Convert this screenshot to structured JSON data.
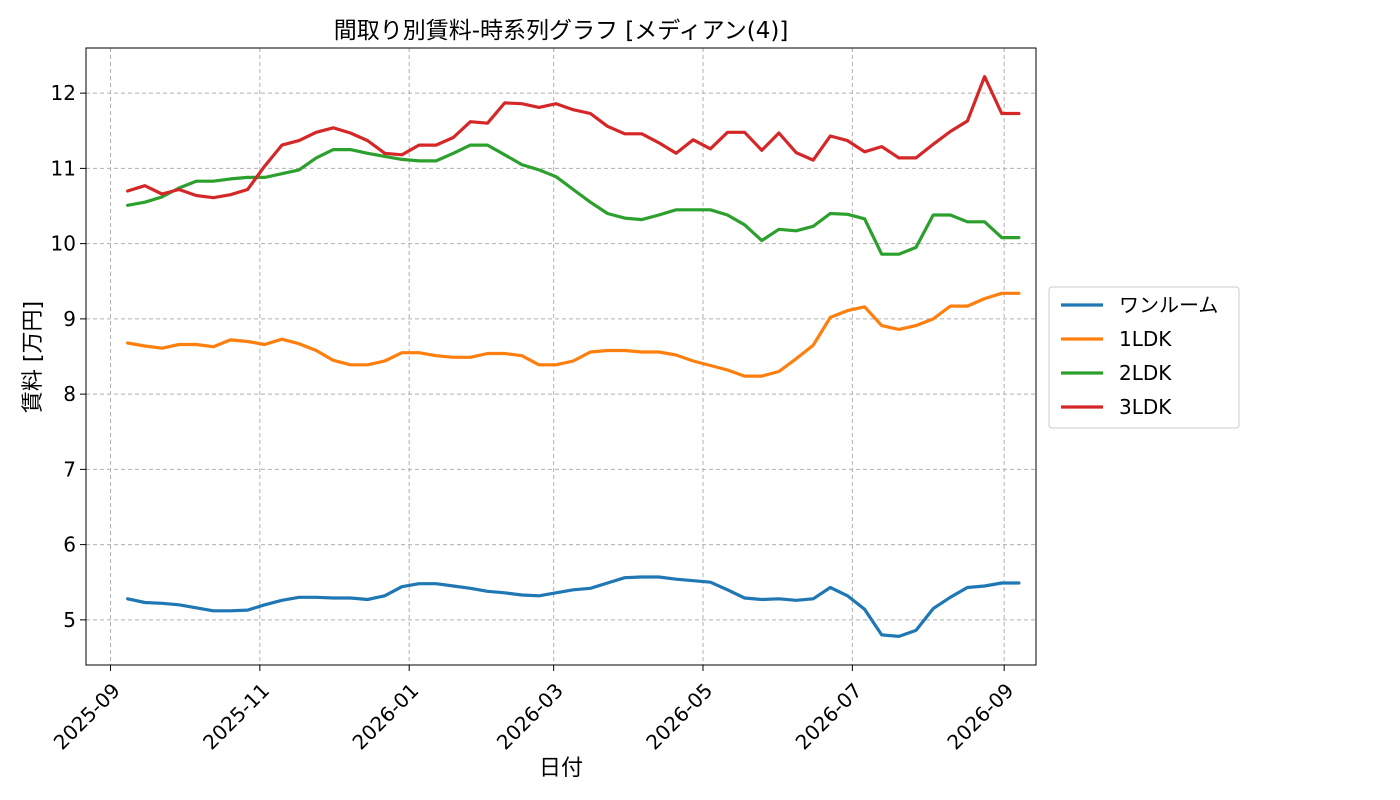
{
  "chart_data": {
    "type": "line",
    "title": "間取り別賃料-時系列グラフ [メディアン(4)]",
    "xlabel": "日付",
    "ylabel": "賃料 [万円]",
    "ylim": [
      4.4,
      12.6
    ],
    "xlim": [
      "2025-08-22",
      "2026-09-14"
    ],
    "yticks": [
      5,
      6,
      7,
      8,
      9,
      10,
      11,
      12
    ],
    "xticks": [
      "2025-09",
      "2025-11",
      "2026-01",
      "2026-03",
      "2026-05",
      "2026-07",
      "2026-09"
    ],
    "grid": true,
    "legend_position": "right-outside",
    "x": [
      "2025-09-08",
      "2025-09-15",
      "2025-09-22",
      "2025-09-29",
      "2025-10-06",
      "2025-10-13",
      "2025-10-20",
      "2025-10-27",
      "2025-11-03",
      "2025-11-10",
      "2025-11-17",
      "2025-11-24",
      "2025-12-01",
      "2025-12-08",
      "2025-12-15",
      "2025-12-22",
      "2025-12-29",
      "2026-01-05",
      "2026-01-12",
      "2026-01-19",
      "2026-01-26",
      "2026-02-02",
      "2026-02-09",
      "2026-02-16",
      "2026-02-23",
      "2026-03-02",
      "2026-03-09",
      "2026-03-16",
      "2026-03-23",
      "2026-03-30",
      "2026-04-06",
      "2026-04-13",
      "2026-04-20",
      "2026-04-27",
      "2026-05-04",
      "2026-05-11",
      "2026-05-18",
      "2026-05-25",
      "2026-06-01",
      "2026-06-08",
      "2026-06-15",
      "2026-06-22",
      "2026-06-29",
      "2026-07-06",
      "2026-07-13",
      "2026-07-20",
      "2026-07-27",
      "2026-08-03",
      "2026-08-10",
      "2026-08-17",
      "2026-08-24",
      "2026-08-31",
      "2026-09-07"
    ],
    "series": [
      {
        "name": "ワンルーム",
        "color": "#1f77b4",
        "values": [
          5.28,
          5.23,
          5.22,
          5.2,
          5.16,
          5.12,
          5.12,
          5.13,
          5.2,
          5.26,
          5.3,
          5.3,
          5.29,
          5.29,
          5.27,
          5.32,
          5.44,
          5.48,
          5.48,
          5.45,
          5.42,
          5.38,
          5.36,
          5.33,
          5.32,
          5.36,
          5.4,
          5.42,
          5.49,
          5.56,
          5.57,
          5.57,
          5.54,
          5.52,
          5.5,
          5.4,
          5.29,
          5.27,
          5.28,
          5.26,
          5.28,
          5.43,
          5.32,
          5.14,
          4.8,
          4.78,
          4.86,
          5.15,
          5.3,
          5.43,
          5.45,
          5.49,
          5.49
        ]
      },
      {
        "name": "1LDK",
        "color": "#ff7f0e",
        "values": [
          8.68,
          8.64,
          8.61,
          8.66,
          8.66,
          8.63,
          8.72,
          8.7,
          8.66,
          8.73,
          8.67,
          8.58,
          8.45,
          8.39,
          8.39,
          8.44,
          8.55,
          8.55,
          8.51,
          8.49,
          8.49,
          8.54,
          8.54,
          8.51,
          8.39,
          8.39,
          8.44,
          8.56,
          8.58,
          8.58,
          8.56,
          8.56,
          8.52,
          8.44,
          8.38,
          8.32,
          8.24,
          8.24,
          8.3,
          8.47,
          8.65,
          9.02,
          9.11,
          9.16,
          8.91,
          8.86,
          8.91,
          9.0,
          9.17,
          9.17,
          9.27,
          9.34,
          9.34
        ]
      },
      {
        "name": "2LDK",
        "color": "#2ca02c",
        "values": [
          10.51,
          10.55,
          10.62,
          10.74,
          10.83,
          10.83,
          10.86,
          10.88,
          10.88,
          10.93,
          10.98,
          11.14,
          11.25,
          11.25,
          11.2,
          11.16,
          11.12,
          11.1,
          11.1,
          11.2,
          11.31,
          11.31,
          11.18,
          11.05,
          10.98,
          10.89,
          10.72,
          10.55,
          10.4,
          10.34,
          10.32,
          10.38,
          10.45,
          10.45,
          10.45,
          10.38,
          10.25,
          10.04,
          10.19,
          10.17,
          10.23,
          10.4,
          10.39,
          10.33,
          9.86,
          9.86,
          9.95,
          10.38,
          10.38,
          10.29,
          10.29,
          10.08,
          10.08
        ]
      },
      {
        "name": "3LDK",
        "color": "#d62728",
        "values": [
          10.7,
          10.77,
          10.66,
          10.72,
          10.64,
          10.61,
          10.65,
          10.72,
          11.03,
          11.31,
          11.37,
          11.48,
          11.54,
          11.47,
          11.37,
          11.2,
          11.18,
          11.31,
          11.31,
          11.41,
          11.62,
          11.6,
          11.87,
          11.86,
          11.81,
          11.86,
          11.78,
          11.73,
          11.56,
          11.46,
          11.46,
          11.34,
          11.2,
          11.38,
          11.26,
          11.48,
          11.48,
          11.24,
          11.47,
          11.21,
          11.11,
          11.43,
          11.37,
          11.22,
          11.29,
          11.14,
          11.14,
          11.32,
          11.49,
          11.63,
          12.22,
          11.73,
          11.73
        ]
      }
    ]
  }
}
